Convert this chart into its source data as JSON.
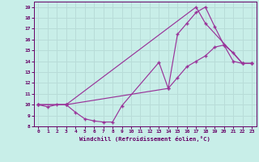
{
  "xlabel": "Windchill (Refroidissement éolien,°C)",
  "bg_color": "#c8eee8",
  "grid_color": "#b8dcd8",
  "line_color": "#993399",
  "xlim": [
    -0.5,
    23.5
  ],
  "ylim": [
    8,
    19.5
  ],
  "xticks": [
    0,
    1,
    2,
    3,
    4,
    5,
    6,
    7,
    8,
    9,
    10,
    11,
    12,
    13,
    14,
    15,
    16,
    17,
    18,
    19,
    20,
    21,
    22,
    23
  ],
  "yticks": [
    8,
    9,
    10,
    11,
    12,
    13,
    14,
    15,
    16,
    17,
    18,
    19
  ],
  "line1_x": [
    0,
    1,
    2,
    3,
    4,
    5,
    6,
    7,
    8,
    9,
    13,
    14,
    15,
    16,
    17,
    18,
    19,
    20,
    21,
    22,
    23
  ],
  "line1_y": [
    10,
    9.8,
    10,
    10,
    9.3,
    8.7,
    8.5,
    8.4,
    8.4,
    9.9,
    13.9,
    11.5,
    16.5,
    17.5,
    18.5,
    19.0,
    17.2,
    15.5,
    14.0,
    13.8,
    13.8
  ],
  "line2_x": [
    0,
    3,
    17,
    18,
    22,
    23
  ],
  "line2_y": [
    10,
    10,
    19.0,
    17.5,
    13.8,
    13.8
  ],
  "line3_x": [
    0,
    3,
    14,
    15,
    16,
    17,
    18,
    19,
    20,
    21,
    22,
    23
  ],
  "line3_y": [
    10,
    10,
    11.5,
    12.5,
    13.5,
    14.0,
    14.5,
    15.3,
    15.5,
    14.8,
    13.8,
    13.8
  ]
}
